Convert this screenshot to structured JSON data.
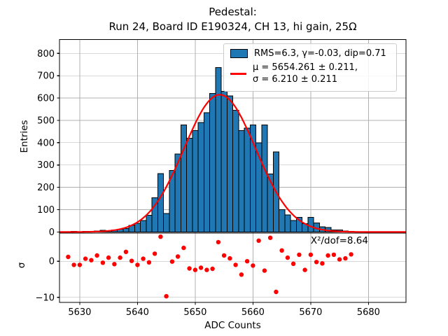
{
  "title": {
    "line1": "Pedestal:",
    "line2": "Run 24, Board ID E190324, CH 13, hi gain, 25Ω"
  },
  "legend": {
    "hist_label": "RMS=6.3, γ=-0.03, dip=0.71",
    "fit_label_line1": "μ = 5654.261 ± 0.211,",
    "fit_label_line2": "σ = 6.210 ± 0.211"
  },
  "annotation": "X²/dof=8.64",
  "colors": {
    "bar_fill": "#1f77b4",
    "bar_edge": "#000000",
    "fit_line": "#ff0000",
    "residual_marker": "#ff0000",
    "grid": "#b0b0b0"
  },
  "chart_data": [
    {
      "type": "bar",
      "title": "Pedestal:",
      "subtitle": "Run 24, Board ID E190324, CH 13, hi gain, 25Ω",
      "ylabel": "Entries",
      "xlabel": "",
      "grid": true,
      "legend_position": "upper right",
      "xlim": [
        5626.5,
        5686.5
      ],
      "ylim": [
        -5,
        862
      ],
      "xticks": [
        5630,
        5640,
        5650,
        5660,
        5670,
        5680
      ],
      "yticks": [
        0,
        100,
        200,
        300,
        400,
        500,
        600,
        700,
        800
      ],
      "bin_width": 1,
      "bin_centers": [
        5628,
        5629,
        5630,
        5631,
        5632,
        5633,
        5634,
        5635,
        5636,
        5637,
        5638,
        5639,
        5640,
        5641,
        5642,
        5643,
        5644,
        5645,
        5646,
        5647,
        5648,
        5649,
        5650,
        5651,
        5652,
        5653,
        5654,
        5655,
        5656,
        5657,
        5658,
        5659,
        5660,
        5661,
        5662,
        5663,
        5664,
        5665,
        5666,
        5667,
        5668,
        5669,
        5670,
        5671,
        5672,
        5673,
        5674,
        5675,
        5676,
        5677
      ],
      "values": [
        2,
        3,
        2,
        3,
        3,
        4,
        8,
        6,
        9,
        12,
        15,
        29,
        39,
        51,
        75,
        154,
        262,
        83,
        275,
        350,
        479,
        420,
        455,
        490,
        535,
        620,
        737,
        630,
        610,
        545,
        455,
        465,
        480,
        400,
        480,
        260,
        358,
        100,
        77,
        52,
        65,
        38,
        65,
        41,
        23,
        20,
        9,
        9,
        5,
        3
      ],
      "fit": {
        "shape": "gaussian",
        "mu": 5654.261,
        "mu_err": 0.211,
        "sigma": 6.21,
        "sigma_err": 0.211,
        "amplitude": 615,
        "rms": 6.3,
        "gamma": -0.03,
        "dip": 0.71
      }
    },
    {
      "type": "scatter",
      "ylabel": "σ",
      "xlabel": "ADC Counts",
      "grid": true,
      "annotation": "X²/dof=8.64",
      "chi2_per_dof": 8.64,
      "xlim": [
        5626.5,
        5686.5
      ],
      "ylim": [
        -11.4,
        7.8
      ],
      "xticks": [
        5630,
        5640,
        5650,
        5660,
        5670,
        5680
      ],
      "yticks": [
        0,
        -10
      ],
      "x": [
        5628,
        5629,
        5630,
        5631,
        5632,
        5633,
        5634,
        5635,
        5636,
        5637,
        5638,
        5639,
        5640,
        5641,
        5642,
        5643,
        5644,
        5645,
        5646,
        5647,
        5648,
        5649,
        5650,
        5651,
        5652,
        5653,
        5654,
        5655,
        5656,
        5657,
        5658,
        5659,
        5660,
        5661,
        5662,
        5663,
        5664,
        5665,
        5666,
        5667,
        5668,
        5669,
        5670,
        5671,
        5672,
        5673,
        5674,
        5675,
        5676,
        5677
      ],
      "y": [
        1.2,
        -1.0,
        -1.0,
        0.7,
        0.3,
        1.6,
        -0.4,
        1.0,
        -0.8,
        1.0,
        2.6,
        0.1,
        -1.0,
        0.7,
        -0.3,
        2.1,
        6.8,
        -9.7,
        -0.1,
        1.3,
        3.7,
        -2.0,
        -2.4,
        -1.8,
        -2.4,
        -2.1,
        5.3,
        1.6,
        0.8,
        -1.0,
        -3.7,
        0.0,
        -1.2,
        5.7,
        -2.6,
        6.5,
        -8.5,
        3.0,
        1.0,
        -0.7,
        1.8,
        -2.4,
        1.8,
        -0.2,
        -0.6,
        1.6,
        1.8,
        0.5,
        0.8,
        1.9
      ]
    }
  ]
}
